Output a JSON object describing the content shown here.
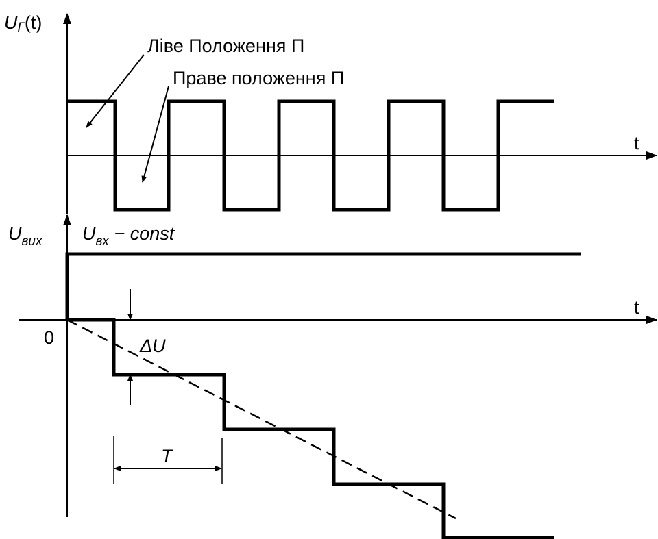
{
  "colors": {
    "stroke": "#000000",
    "background": "#ffffff"
  },
  "top_plot": {
    "y_axis_label": {
      "main": "U",
      "sub": "Г",
      "arg": "(t)"
    },
    "x_axis_label": "t",
    "annotation_left": "Ліве Положення П",
    "annotation_right": "Праве положення  П"
  },
  "bottom_plot": {
    "y_axis_label": {
      "main": "U",
      "sub": "вих"
    },
    "input_label": {
      "main": "U",
      "sub": "вх",
      "rest": " − const"
    },
    "x_axis_label": "t",
    "origin_label": "0",
    "delta_label": "ΔU",
    "period_label": "T"
  }
}
